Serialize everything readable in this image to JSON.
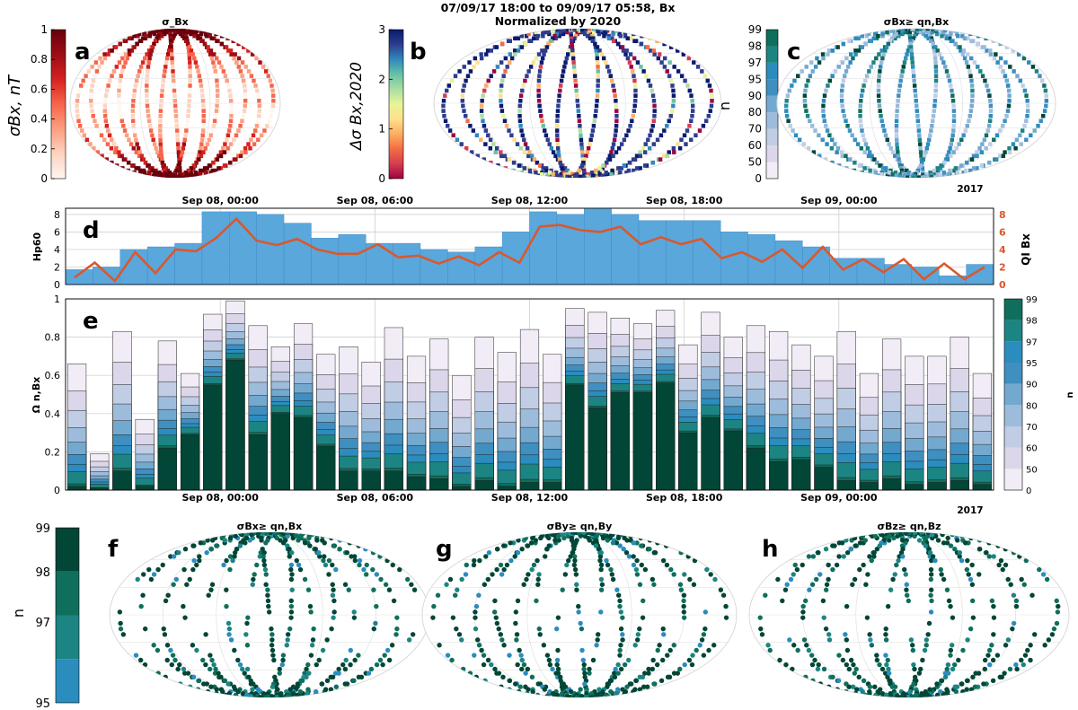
{
  "header": {
    "line1": "07/09/17 18:00 to 09/09/17 05:58, Bx",
    "line2": "Normalized by 2020"
  },
  "colors": {
    "reds": [
      "#fff5f0",
      "#fdd3c0",
      "#fc9f81",
      "#f7654a",
      "#d52221",
      "#9d0d14",
      "#67000d"
    ],
    "spectral": [
      "#9e0142",
      "#d53e4f",
      "#f46d43",
      "#fdae61",
      "#fee08b",
      "#e6f598",
      "#abdda4",
      "#66c2a5",
      "#3288bd",
      "#2d3d8e",
      "#0a1a6e"
    ],
    "pubugn": [
      "#f2ecf6",
      "#dcd6ea",
      "#c0cde4",
      "#9dbcdb",
      "#74a9cf",
      "#3f8fc1",
      "#2b8cbe",
      "#1c8583",
      "#0f6f5c",
      "#014636"
    ],
    "hp60_bar": "#5aa7dc",
    "ql_line": "#d9582d",
    "ql_axis": "#d9582d"
  },
  "panels": {
    "a": {
      "letter": "a",
      "title": "σ_Bx",
      "cbar_label": "σBx, nT",
      "ticks": [
        "0",
        "0.2",
        "0.4",
        "0.6",
        "0.8",
        "1"
      ]
    },
    "b": {
      "letter": "b",
      "title": "",
      "cbar_label": "Δσ Bx,2020",
      "ticks": [
        "0",
        "1",
        "2",
        "3"
      ]
    },
    "c": {
      "letter": "c",
      "title": "σBx≥ qn,Bx",
      "cbar_label": "n",
      "ticks": [
        "0",
        "50",
        "60",
        "70",
        "80",
        "90",
        "95",
        "97",
        "98",
        "99"
      ],
      "year": "2017"
    },
    "f": {
      "letter": "f",
      "title": "σBx≥ qn,Bx"
    },
    "g": {
      "letter": "g",
      "title": "σBy≥ qn,By"
    },
    "h": {
      "letter": "h",
      "title": "σBz≥ qn,Bz"
    },
    "fgh_cbar": {
      "label": "n",
      "ticks": [
        "95",
        "97",
        "98",
        "99"
      ]
    }
  },
  "chart_data": [
    {
      "type": "bar",
      "id": "d",
      "letter": "d",
      "ylabel": "Hp60",
      "ylabel_right": "QI Bx",
      "ylim": [
        0,
        8.7
      ],
      "yticks": [
        "0",
        "2",
        "4",
        "6",
        "8"
      ],
      "yticks_right": [
        "0",
        "2",
        "4",
        "6",
        "8"
      ],
      "x_ticks": [
        "Sep 08, 00:00",
        "Sep 08, 06:00",
        "Sep 08, 12:00",
        "Sep 08, 18:00",
        "Sep 09, 00:00"
      ],
      "x_tick_hours": [
        6,
        12,
        18,
        24,
        30
      ],
      "x_range_hours": [
        0,
        36
      ],
      "hp60": [
        1.7,
        2.0,
        4.0,
        4.3,
        4.7,
        8.3,
        8.3,
        8.0,
        7.0,
        5.3,
        5.7,
        4.7,
        4.7,
        4.0,
        3.7,
        4.3,
        6.0,
        8.3,
        8.0,
        8.7,
        8.0,
        7.3,
        7.3,
        7.3,
        6.0,
        5.7,
        5.0,
        4.3,
        3.0,
        3.0,
        2.3,
        2.0,
        1.0,
        2.3
      ],
      "ql": [
        0.8,
        2.5,
        0.4,
        3.7,
        1.3,
        4.0,
        3.8,
        5.3,
        7.5,
        5.0,
        4.5,
        5.2,
        4.0,
        3.5,
        3.5,
        4.6,
        3.1,
        3.3,
        2.4,
        3.2,
        2.2,
        3.7,
        2.5,
        6.6,
        6.8,
        6.2,
        6.0,
        6.6,
        4.6,
        5.4,
        4.6,
        5.2,
        3.0,
        3.7,
        2.6,
        4.0,
        1.9,
        4.3,
        1.7,
        2.9,
        1.4,
        2.9,
        0.6,
        2.4,
        0.6,
        2.0
      ]
    },
    {
      "type": "bar",
      "id": "e",
      "letter": "e",
      "ylabel": "Ω n,Bx",
      "ylim": [
        0,
        1
      ],
      "yticks": [
        "0",
        "0.2",
        "0.4",
        "0.6",
        "0.8",
        "1"
      ],
      "x_ticks": [
        "Sep 08, 00:00",
        "Sep 08, 06:00",
        "Sep 08, 12:00",
        "Sep 08, 18:00",
        "Sep 09, 00:00"
      ],
      "x_tick_hours": [
        6,
        12,
        18,
        24,
        30
      ],
      "year": "2017",
      "cbar_label": "n",
      "cbar_ticks": [
        "0",
        "50",
        "60",
        "70",
        "80",
        "90",
        "95",
        "97",
        "98",
        "99"
      ],
      "tops": [
        0.66,
        0.19,
        0.83,
        0.37,
        0.78,
        0.61,
        0.92,
        0.99,
        0.86,
        0.75,
        0.87,
        0.71,
        0.75,
        0.67,
        0.85,
        0.7,
        0.79,
        0.6,
        0.8,
        0.72,
        0.84,
        0.71,
        0.95,
        0.93,
        0.9,
        0.87,
        0.94,
        0.76,
        0.93,
        0.8,
        0.86,
        0.83,
        0.76,
        0.7,
        0.83,
        0.61,
        0.79,
        0.7,
        0.7,
        0.8,
        0.61
      ],
      "strong": [
        0.02,
        0.01,
        0.1,
        0.02,
        0.22,
        0.29,
        0.55,
        0.68,
        0.29,
        0.4,
        0.38,
        0.23,
        0.1,
        0.1,
        0.1,
        0.07,
        0.06,
        0.02,
        0.05,
        0.02,
        0.04,
        0.04,
        0.55,
        0.43,
        0.51,
        0.51,
        0.56,
        0.3,
        0.38,
        0.31,
        0.22,
        0.15,
        0.16,
        0.12,
        0.05,
        0.04,
        0.06,
        0.03,
        0.04,
        0.05,
        0.03
      ]
    }
  ]
}
